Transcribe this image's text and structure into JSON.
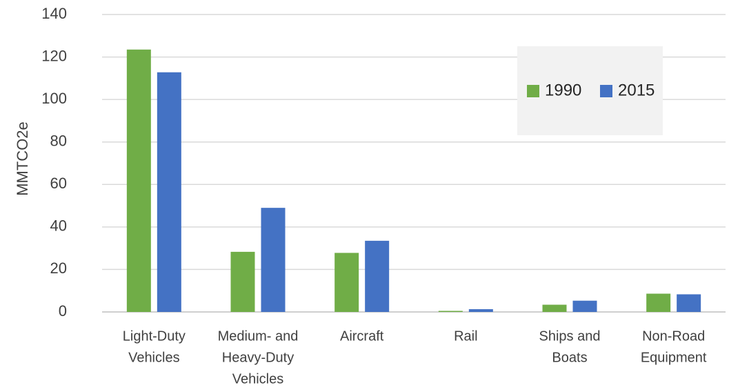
{
  "chart_data": {
    "type": "bar",
    "title": "",
    "xlabel": "",
    "ylabel": "MMTCO2e",
    "ylim": [
      0,
      140
    ],
    "yticks": [
      0,
      20,
      40,
      60,
      80,
      100,
      120,
      140
    ],
    "grid": true,
    "legend_position": "top-right",
    "categories": [
      [
        "Light-Duty",
        "Vehicles"
      ],
      [
        "Medium- and",
        "Heavy-Duty",
        "Vehicles"
      ],
      [
        "Aircraft"
      ],
      [
        "Rail"
      ],
      [
        "Ships and",
        "Boats"
      ],
      [
        "Non-Road",
        "Equipment"
      ]
    ],
    "series": [
      {
        "name": "1990",
        "color": "#70AD47",
        "values": [
          123.5,
          28.3,
          27.8,
          0.5,
          3.4,
          8.6
        ]
      },
      {
        "name": "2015",
        "color": "#4472C4",
        "values": [
          112.8,
          49.0,
          33.5,
          1.3,
          5.3,
          8.3
        ]
      }
    ]
  }
}
